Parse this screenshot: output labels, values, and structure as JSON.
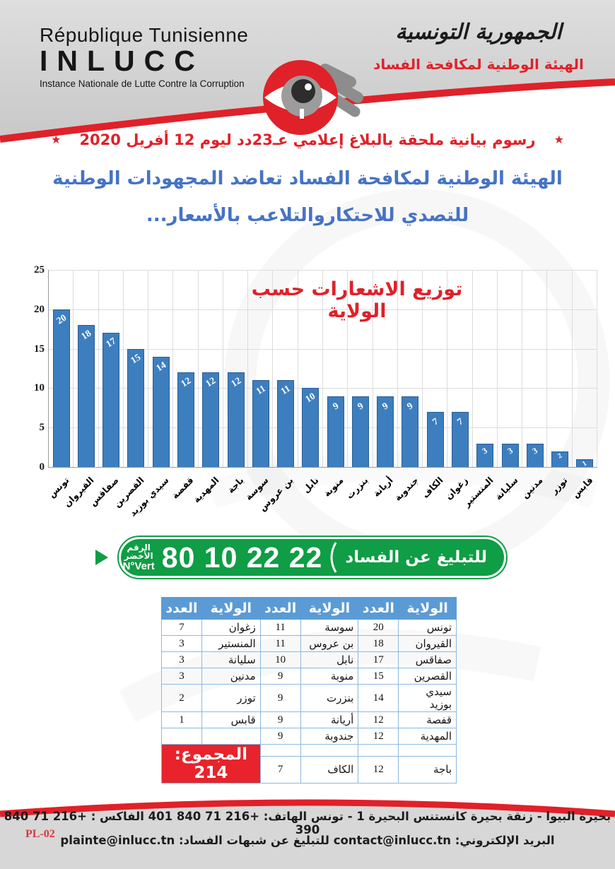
{
  "header": {
    "country_fr": "République Tunisienne",
    "acronym": "INLUCC",
    "org_fr": "Instance Nationale de Lutte Contre la Corruption",
    "country_ar": "الجمهورية التونسية",
    "org_ar": "الهيئة الوطنية لمكافحة الفساد"
  },
  "titles": {
    "star": "★",
    "report_line": "رسوم بيانية ملحقة بالبلاغ إعلامي عـ23دد ليوم 12 أفريل 2020",
    "statement_line1": "الهيئة الوطنية لمكافحة الفساد تعاضد المجهودات الوطنية",
    "statement_line2": "للتصدي للاحتكاروالتلاعب بالأسعار..."
  },
  "chart_data": {
    "type": "bar",
    "title": "توزيع الاشعارات حسب الولاية",
    "categories": [
      "تونس",
      "القيروان",
      "صفاقس",
      "القصرين",
      "سيدي بوزيد",
      "قفصة",
      "المهدية",
      "باجة",
      "سوسة",
      "بن عروس",
      "نابل",
      "منوبة",
      "بنزرت",
      "أريانة",
      "جندوبة",
      "الكاف",
      "زغوان",
      "المنستير",
      "سليانة",
      "مدنين",
      "توزر",
      "قابس"
    ],
    "values": [
      20,
      18,
      17,
      15,
      14,
      12,
      12,
      12,
      11,
      11,
      10,
      9,
      9,
      9,
      9,
      7,
      7,
      3,
      3,
      3,
      2,
      1
    ],
    "xlabel": "",
    "ylabel": "",
    "ylim": [
      0,
      25
    ],
    "yticks": [
      0,
      5,
      10,
      15,
      20,
      25
    ],
    "grid": true,
    "legend": false,
    "bar_color": "#3d7ebf",
    "value_label_color": "#ffffff",
    "title_color": "#e02129",
    "total": 214
  },
  "hotline": {
    "label": "للتبليغ عن الفساد",
    "number": "80 10 22 22",
    "nvert_ar": "الرقم الأخضر",
    "nvert_fr": "N°Vert",
    "green": "#0f9d45"
  },
  "table": {
    "col_name": "الولاية",
    "col_count": "العدد",
    "rows": [
      [
        [
          "تونس",
          "20"
        ],
        [
          "سوسة",
          "11"
        ],
        [
          "زغوان",
          "7"
        ]
      ],
      [
        [
          "القيروان",
          "18"
        ],
        [
          "بن عروس",
          "11"
        ],
        [
          "المنستير",
          "3"
        ]
      ],
      [
        [
          "صفاقس",
          "17"
        ],
        [
          "نابل",
          "10"
        ],
        [
          "سليانة",
          "3"
        ]
      ],
      [
        [
          "القصرين",
          "15"
        ],
        [
          "منوبة",
          "9"
        ],
        [
          "مدنين",
          "3"
        ]
      ],
      [
        [
          "سيدي بوزيد",
          "14"
        ],
        [
          "بنزرت",
          "9"
        ],
        [
          "توزر",
          "2"
        ]
      ],
      [
        [
          "قفصة",
          "12"
        ],
        [
          "أريانة",
          "9"
        ],
        [
          "قابس",
          "1"
        ]
      ],
      [
        [
          "المهدية",
          "12"
        ],
        [
          "جندوبة",
          "9"
        ],
        [
          "",
          ""
        ]
      ]
    ],
    "row8": [
      [
        "",
        ""
      ],
      [
        "",
        ""
      ]
    ],
    "row9": [
      [
        "باجة",
        "12"
      ],
      [
        "الكاف",
        "7"
      ]
    ],
    "total": "المجموع: 214"
  },
  "footer": {
    "line1": "بحيرة البيوا - زنقة بحيرة كانستنس البحيرة 1 - تونس   الهاتف: +216 71 840 401   الفاكس : +216 71 840 390",
    "line2": "البريد الإلكتروني: contact@inlucc.tn      للتبليغ عن شبهات الفساد: plainte@inlucc.tn",
    "page_code": "PL-02"
  }
}
